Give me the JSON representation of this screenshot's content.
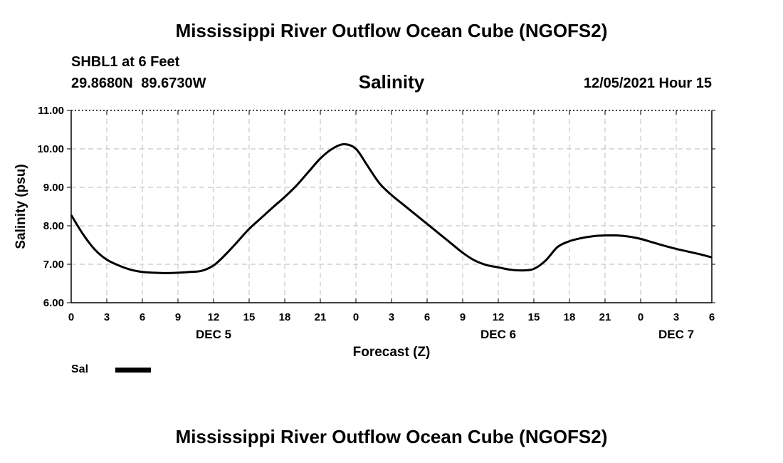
{
  "header": {
    "title": "Mississippi River Outflow Ocean Cube (NGOFS2)",
    "station": "SHBL1 at 6 Feet",
    "coordinates": "29.8680N 89.6730W",
    "variable": "Salinity",
    "run_time": "12/05/2021 Hour 15"
  },
  "footer": {
    "title": "Mississippi River Outflow Ocean Cube (NGOFS2)"
  },
  "legend": {
    "label": "Sal"
  },
  "chart_data": {
    "type": "line",
    "title": "Salinity",
    "xlabel": "Forecast (Z)",
    "ylabel": "Salinity (psu)",
    "xlim": [
      0,
      54
    ],
    "ylim": [
      6.0,
      11.0
    ],
    "grid": true,
    "y_ticks": [
      "6.00",
      "7.00",
      "8.00",
      "9.00",
      "10.00",
      "11.00"
    ],
    "x_ticks": [
      {
        "hours": 0,
        "label": "0"
      },
      {
        "hours": 3,
        "label": "3"
      },
      {
        "hours": 6,
        "label": "6"
      },
      {
        "hours": 9,
        "label": "9"
      },
      {
        "hours": 12,
        "label": "12"
      },
      {
        "hours": 15,
        "label": "15"
      },
      {
        "hours": 18,
        "label": "18"
      },
      {
        "hours": 21,
        "label": "21"
      },
      {
        "hours": 24,
        "label": "0"
      },
      {
        "hours": 27,
        "label": "3"
      },
      {
        "hours": 30,
        "label": "6"
      },
      {
        "hours": 33,
        "label": "9"
      },
      {
        "hours": 36,
        "label": "12"
      },
      {
        "hours": 39,
        "label": "15"
      },
      {
        "hours": 42,
        "label": "18"
      },
      {
        "hours": 45,
        "label": "21"
      },
      {
        "hours": 48,
        "label": "0"
      },
      {
        "hours": 51,
        "label": "3"
      },
      {
        "hours": 54,
        "label": "6"
      }
    ],
    "date_labels": [
      {
        "hours": 12,
        "label": "DEC 5"
      },
      {
        "hours": 36,
        "label": "DEC 6"
      },
      {
        "hours": 51,
        "label": "DEC 7"
      }
    ],
    "series": [
      {
        "name": "Sal",
        "color": "#000000",
        "x": [
          0,
          1,
          2,
          3,
          4,
          5,
          6,
          7,
          8,
          9,
          10,
          11,
          12,
          13,
          14,
          15,
          16,
          17,
          18,
          19,
          20,
          21,
          22,
          23,
          24,
          25,
          26,
          27,
          28,
          29,
          30,
          31,
          32,
          33,
          34,
          35,
          36,
          37,
          38,
          39,
          40,
          41,
          42,
          43,
          44,
          45,
          46,
          47,
          48,
          49,
          50,
          51,
          52,
          53,
          54
        ],
        "values": [
          8.28,
          7.78,
          7.38,
          7.12,
          6.97,
          6.86,
          6.8,
          6.78,
          6.77,
          6.78,
          6.8,
          6.83,
          6.97,
          7.25,
          7.58,
          7.92,
          8.2,
          8.48,
          8.75,
          9.05,
          9.4,
          9.75,
          10.0,
          10.12,
          10.0,
          9.55,
          9.1,
          8.8,
          8.55,
          8.3,
          8.05,
          7.8,
          7.55,
          7.3,
          7.1,
          6.98,
          6.92,
          6.86,
          6.84,
          6.88,
          7.1,
          7.45,
          7.6,
          7.68,
          7.73,
          7.75,
          7.75,
          7.72,
          7.66,
          7.57,
          7.48,
          7.4,
          7.33,
          7.26,
          7.18
        ]
      }
    ]
  }
}
